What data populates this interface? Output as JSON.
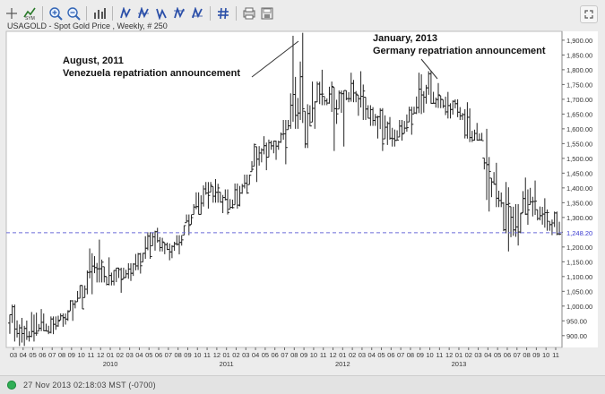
{
  "toolbar": {
    "buttons": [
      {
        "name": "crosshair-icon"
      },
      {
        "name": "symbol-search-icon"
      },
      {
        "name": "zoom-in-icon"
      },
      {
        "name": "zoom-out-icon"
      },
      {
        "name": "bar-style-icon"
      },
      {
        "name": "draw-tool-1-icon"
      },
      {
        "name": "draw-tool-2-icon"
      },
      {
        "name": "draw-tool-3-icon"
      },
      {
        "name": "draw-tool-4-icon"
      },
      {
        "name": "draw-tool-5-icon"
      },
      {
        "name": "grid-icon"
      },
      {
        "name": "print-icon"
      },
      {
        "name": "save-icon"
      }
    ]
  },
  "chart_title": "USAGOLD - Spot Gold Price , Weekly, # 250",
  "annotations": {
    "a1_line1": "August, 2011",
    "a1_line2": "Venezuela repatriation announcement",
    "a2_line1": "January, 2013",
    "a2_line2": "Germany repatriation announcement"
  },
  "status": {
    "text": "27 Nov 2013 02:18:03  MST (-0700)"
  },
  "chart_data": {
    "type": "ohlc",
    "title": "USAGOLD - Spot Gold Price , Weekly, # 250",
    "ylim": [
      860,
      1930
    ],
    "yticks": [
      900,
      950,
      1000,
      1050,
      1100,
      1150,
      1200,
      1250,
      1300,
      1350,
      1400,
      1450,
      1500,
      1550,
      1600,
      1650,
      1700,
      1750,
      1800,
      1850,
      1900
    ],
    "ytick_labels": [
      "900.00",
      "950.00",
      "1,000.00",
      "1,050.00",
      "1,100.00",
      "1,150.00",
      "1,200.00",
      "1,250.00",
      "1,300.00",
      "1,350.00",
      "1,400.00",
      "1,450.00",
      "1,500.00",
      "1,550.00",
      "1,600.00",
      "1,650.00",
      "1,700.00",
      "1,750.00",
      "1,800.00",
      "1,850.00",
      "1,900.00"
    ],
    "month_labels": [
      "03",
      "04",
      "05",
      "06",
      "07",
      "08",
      "09",
      "10",
      "11",
      "12",
      "01",
      "02",
      "03",
      "04",
      "05",
      "06",
      "07",
      "08",
      "09",
      "10",
      "11",
      "12",
      "01",
      "02",
      "03",
      "04",
      "05",
      "06",
      "07",
      "08",
      "09",
      "10",
      "11",
      "12",
      "01",
      "02",
      "03",
      "04",
      "05",
      "06",
      "07",
      "08",
      "09",
      "10",
      "11",
      "12",
      "01",
      "02",
      "03",
      "04",
      "05",
      "06",
      "07",
      "08",
      "09",
      "10",
      "11"
    ],
    "year_labels": [
      {
        "label": "2010",
        "month_index": 10
      },
      {
        "label": "2011",
        "month_index": 22
      },
      {
        "label": "2012",
        "month_index": 34
      },
      {
        "label": "2013",
        "month_index": 46
      }
    ],
    "current_price": 1248.2,
    "current_price_label": "1,248.20",
    "monthly_ranges": [
      {
        "m": "2009-03",
        "low": 880,
        "high": 1005
      },
      {
        "m": "2009-04",
        "low": 865,
        "high": 960
      },
      {
        "m": "2009-05",
        "low": 880,
        "high": 980
      },
      {
        "m": "2009-06",
        "low": 915,
        "high": 990
      },
      {
        "m": "2009-07",
        "low": 905,
        "high": 965
      },
      {
        "m": "2009-08",
        "low": 930,
        "high": 975
      },
      {
        "m": "2009-09",
        "low": 950,
        "high": 1020
      },
      {
        "m": "2009-10",
        "low": 990,
        "high": 1070
      },
      {
        "m": "2009-11",
        "low": 1040,
        "high": 1195
      },
      {
        "m": "2009-12",
        "low": 1080,
        "high": 1225
      },
      {
        "m": "2010-01",
        "low": 1070,
        "high": 1165
      },
      {
        "m": "2010-02",
        "low": 1045,
        "high": 1130
      },
      {
        "m": "2010-03",
        "low": 1085,
        "high": 1145
      },
      {
        "m": "2010-04",
        "low": 1110,
        "high": 1180
      },
      {
        "m": "2010-05",
        "low": 1160,
        "high": 1250
      },
      {
        "m": "2010-06",
        "low": 1185,
        "high": 1265
      },
      {
        "m": "2010-07",
        "low": 1155,
        "high": 1215
      },
      {
        "m": "2010-08",
        "low": 1175,
        "high": 1240
      },
      {
        "m": "2010-09",
        "low": 1240,
        "high": 1310
      },
      {
        "m": "2010-10",
        "low": 1310,
        "high": 1385
      },
      {
        "m": "2010-11",
        "low": 1330,
        "high": 1420
      },
      {
        "m": "2010-12",
        "low": 1350,
        "high": 1430
      },
      {
        "m": "2011-01",
        "low": 1310,
        "high": 1395
      },
      {
        "m": "2011-02",
        "low": 1330,
        "high": 1415
      },
      {
        "m": "2011-03",
        "low": 1380,
        "high": 1445
      },
      {
        "m": "2011-04",
        "low": 1420,
        "high": 1550
      },
      {
        "m": "2011-05",
        "low": 1460,
        "high": 1575
      },
      {
        "m": "2011-06",
        "low": 1495,
        "high": 1560
      },
      {
        "m": "2011-07",
        "low": 1480,
        "high": 1630
      },
      {
        "m": "2011-08",
        "low": 1600,
        "high": 1915
      },
      {
        "m": "2011-09",
        "low": 1535,
        "high": 1925
      },
      {
        "m": "2011-10",
        "low": 1600,
        "high": 1760
      },
      {
        "m": "2011-11",
        "low": 1680,
        "high": 1800
      },
      {
        "m": "2011-12",
        "low": 1525,
        "high": 1760
      },
      {
        "m": "2012-01",
        "low": 1540,
        "high": 1730
      },
      {
        "m": "2012-02",
        "low": 1690,
        "high": 1790
      },
      {
        "m": "2012-03",
        "low": 1630,
        "high": 1795
      },
      {
        "m": "2012-04",
        "low": 1610,
        "high": 1680
      },
      {
        "m": "2012-05",
        "low": 1525,
        "high": 1670
      },
      {
        "m": "2012-06",
        "low": 1540,
        "high": 1640
      },
      {
        "m": "2012-07",
        "low": 1560,
        "high": 1630
      },
      {
        "m": "2012-08",
        "low": 1580,
        "high": 1675
      },
      {
        "m": "2012-09",
        "low": 1650,
        "high": 1790
      },
      {
        "m": "2012-10",
        "low": 1685,
        "high": 1795
      },
      {
        "m": "2012-11",
        "low": 1670,
        "high": 1755
      },
      {
        "m": "2012-12",
        "low": 1635,
        "high": 1725
      },
      {
        "m": "2013-01",
        "low": 1630,
        "high": 1700
      },
      {
        "m": "2013-02",
        "low": 1555,
        "high": 1690
      },
      {
        "m": "2013-03",
        "low": 1560,
        "high": 1620
      },
      {
        "m": "2013-04",
        "low": 1320,
        "high": 1600
      },
      {
        "m": "2013-05",
        "low": 1335,
        "high": 1485
      },
      {
        "m": "2013-06",
        "low": 1185,
        "high": 1420
      },
      {
        "m": "2013-07",
        "low": 1205,
        "high": 1345
      },
      {
        "m": "2013-08",
        "low": 1275,
        "high": 1435
      },
      {
        "m": "2013-09",
        "low": 1290,
        "high": 1425
      },
      {
        "m": "2013-10",
        "low": 1255,
        "high": 1365
      },
      {
        "m": "2013-11",
        "low": 1240,
        "high": 1320
      }
    ]
  }
}
